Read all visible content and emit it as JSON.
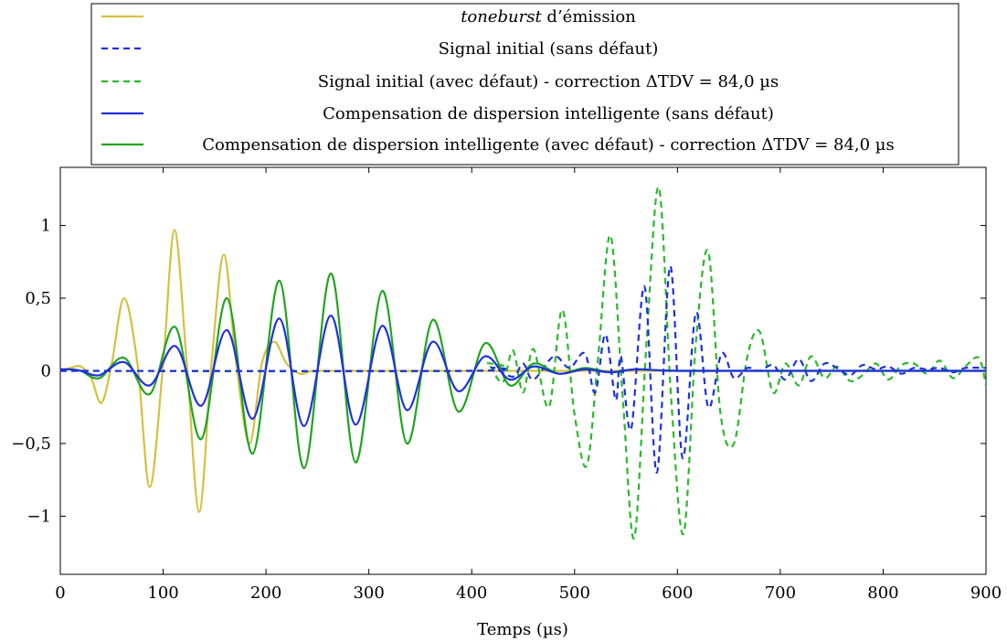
{
  "chart_data": {
    "type": "line",
    "xlabel": "Temps (µs)",
    "ylabel": "",
    "xlim": [
      0,
      900
    ],
    "ylim": [
      -1.4,
      1.4
    ],
    "x_ticks": [
      0,
      100,
      200,
      300,
      400,
      500,
      600,
      700,
      800,
      900
    ],
    "x_tick_labels": [
      "0",
      "100",
      "200",
      "300",
      "400",
      "500",
      "600",
      "700",
      "800",
      "900"
    ],
    "y_ticks": [
      -1,
      -0.5,
      0,
      0.5,
      1
    ],
    "y_tick_labels": [
      "−1",
      "−0,5",
      "0",
      "0,5",
      "1"
    ],
    "grid": false,
    "legend_position": "top-center",
    "series": [
      {
        "name": "toneburst d’émission",
        "name_italic_part": "toneburst",
        "name_rest": " d’émission",
        "color": "#d4c040",
        "dash": "solid",
        "x": [
          0,
          10,
          20,
          30,
          40,
          50,
          62,
          75,
          87,
          100,
          111,
          123,
          135,
          147,
          159,
          171,
          184,
          196,
          208,
          220,
          233,
          245,
          260,
          300,
          400,
          900
        ],
        "y": [
          0,
          0.02,
          0.03,
          -0.05,
          -0.22,
          0.05,
          0.5,
          0.05,
          -0.8,
          0.05,
          0.97,
          0.05,
          -0.97,
          0.05,
          0.8,
          0.05,
          -0.5,
          0.05,
          0.2,
          0.05,
          -0.02,
          0,
          0,
          0,
          0,
          0
        ]
      },
      {
        "name": "Signal initial (sans défaut)",
        "color": "#1f2fe0",
        "dash": "dashed",
        "x": [
          0,
          400,
          420,
          440,
          450,
          460,
          480,
          495,
          510,
          520,
          530,
          540,
          545,
          555,
          568,
          580,
          593,
          605,
          618,
          630,
          643,
          655,
          668,
          680,
          693,
          705,
          718,
          730,
          743,
          755,
          768,
          780,
          793,
          805,
          818,
          830,
          843,
          855,
          868,
          880,
          900
        ],
        "y": [
          0,
          0,
          0.02,
          -0.04,
          0.05,
          -0.06,
          0.1,
          0.02,
          0.12,
          -0.15,
          0.25,
          -0.2,
          0.1,
          -0.4,
          0.58,
          -0.7,
          0.72,
          -0.6,
          0.4,
          -0.25,
          0.12,
          -0.05,
          0.02,
          0,
          0.04,
          -0.06,
          0.08,
          -0.07,
          0.05,
          0.02,
          -0.03,
          0.04,
          0.01,
          0.03,
          -0.02,
          0.02,
          0.01,
          0.02,
          -0.01,
          0.02,
          0.02
        ]
      },
      {
        "name": "Signal initial (avec défaut) - correction ΔTDV = 84,0 µs",
        "color": "#2ab82a",
        "dash": "dashed",
        "x": [
          0,
          400,
          415,
          430,
          440,
          450,
          460,
          475,
          488,
          500,
          512,
          523,
          535,
          547,
          558,
          570,
          582,
          594,
          606,
          618,
          630,
          642,
          655,
          668,
          680,
          693,
          705,
          718,
          730,
          743,
          755,
          768,
          780,
          793,
          805,
          818,
          830,
          843,
          855,
          868,
          880,
          893,
          900
        ],
        "y": [
          0,
          0,
          0.05,
          -0.08,
          0.14,
          -0.15,
          0.15,
          -0.25,
          0.42,
          -0.3,
          -0.65,
          0.1,
          0.93,
          -0.2,
          -1.15,
          0.2,
          1.26,
          -0.2,
          -1.12,
          0.2,
          0.82,
          -0.3,
          -0.5,
          0.1,
          0.27,
          -0.15,
          0.05,
          -0.1,
          0.1,
          -0.05,
          0.03,
          -0.07,
          -0.03,
          0.05,
          -0.06,
          0.04,
          0.05,
          -0.02,
          0.07,
          -0.05,
          0.03,
          0.09,
          -0.1
        ]
      },
      {
        "name": "Compensation de dispersion intelligente (sans défaut)",
        "color": "#1f2fe0",
        "dash": "solid",
        "x": [
          0,
          10,
          20,
          38,
          62,
          87,
          112,
          137,
          162,
          187,
          213,
          237,
          263,
          287,
          313,
          337,
          362,
          387,
          413,
          437,
          460,
          485,
          510,
          535,
          560,
          600,
          700,
          900
        ],
        "y": [
          0.01,
          0.01,
          0.0,
          -0.03,
          0.06,
          -0.1,
          0.17,
          -0.24,
          0.28,
          -0.33,
          0.36,
          -0.38,
          0.38,
          -0.37,
          0.31,
          -0.27,
          0.2,
          -0.14,
          0.1,
          -0.06,
          0.03,
          -0.02,
          0.01,
          -0.01,
          0.01,
          0,
          0,
          0
        ]
      },
      {
        "name": "Compensation de dispersion intelligente (avec défaut) - correction ΔTDV = 84,0 µs",
        "color": "#1ea51e",
        "dash": "solid",
        "x": [
          0,
          10,
          20,
          38,
          62,
          87,
          112,
          137,
          162,
          187,
          213,
          237,
          263,
          287,
          313,
          337,
          362,
          387,
          413,
          437,
          460,
          485,
          510,
          535,
          560,
          600,
          700,
          900
        ],
        "y": [
          0.01,
          0.01,
          0.0,
          -0.05,
          0.09,
          -0.16,
          0.3,
          -0.47,
          0.5,
          -0.57,
          0.62,
          -0.67,
          0.67,
          -0.63,
          0.55,
          -0.5,
          0.35,
          -0.28,
          0.19,
          -0.1,
          0.05,
          -0.02,
          0.02,
          -0.01,
          0.01,
          0,
          0,
          0
        ]
      }
    ]
  }
}
